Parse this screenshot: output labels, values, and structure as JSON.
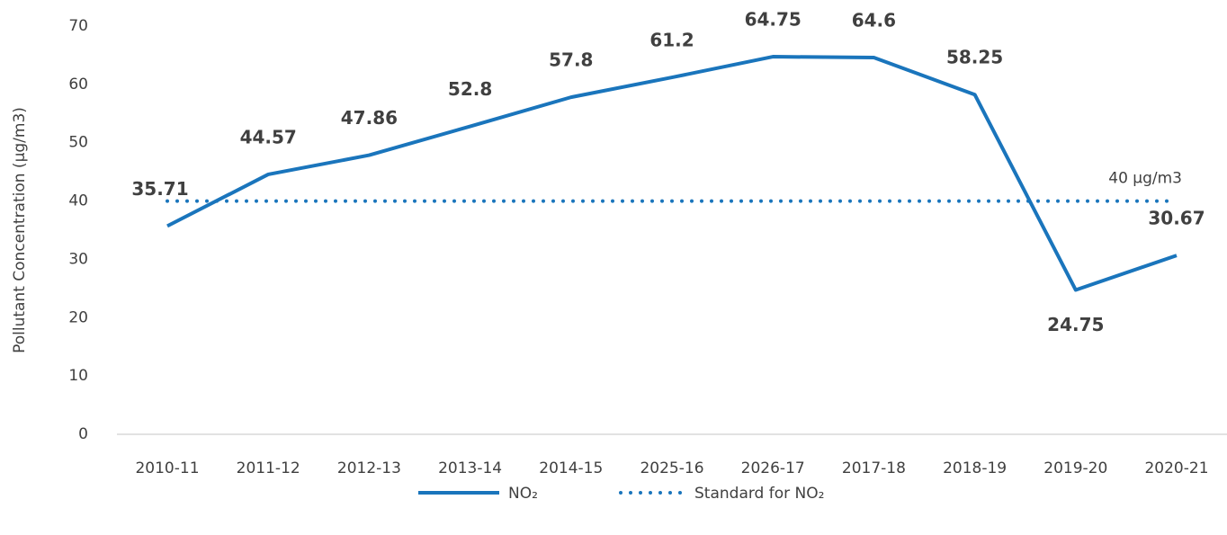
{
  "chart_data": {
    "type": "line",
    "y_label": "Pollutant Concentration (µg/m3)",
    "categories": [
      "2010-11",
      "2011-12",
      "2012-13",
      "2013-14",
      "2014-15",
      "2025-16",
      "2026-17",
      "2017-18",
      "2018-19",
      "2019-20",
      "2020-21"
    ],
    "series": [
      {
        "name": "NO₂",
        "color": "#1a75bc",
        "style": "solid",
        "data_labels": true,
        "values": [
          35.71,
          44.57,
          47.86,
          52.8,
          57.8,
          61.2,
          64.75,
          64.6,
          58.25,
          24.75,
          30.67
        ]
      },
      {
        "name": "Standard for NO₂",
        "color": "#1a75bc",
        "style": "dotted",
        "data_labels": false,
        "values": [
          40,
          40,
          40,
          40,
          40,
          40,
          40,
          40,
          40,
          40,
          40
        ]
      }
    ],
    "annotations": [
      "40 µg/m3"
    ],
    "ylim": [
      0,
      70
    ],
    "yticks": [
      0,
      10,
      20,
      30,
      40,
      50,
      60,
      70
    ],
    "grid": false,
    "legend": "bottom"
  }
}
